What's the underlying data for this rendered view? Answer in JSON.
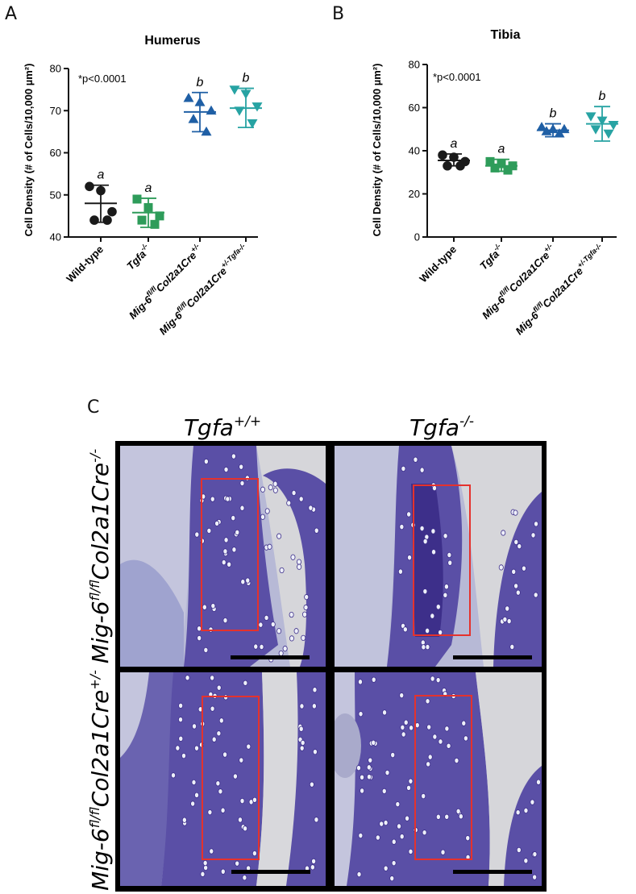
{
  "panels": {
    "a": "A",
    "b": "B",
    "c": "C"
  },
  "chart_data": [
    {
      "type": "scatter",
      "title": "Humerus",
      "ylabel": "Cell Density (# of Cells/10,000 µm²)",
      "ylim": [
        40,
        80
      ],
      "yticks": [
        40,
        50,
        60,
        70,
        80
      ],
      "annotation": "*p<0.0001",
      "categories": [
        {
          "base": "Wild-type",
          "sup": "",
          "base2": "",
          "sup2": ""
        },
        {
          "base": "Tgfa",
          "sup": "-/-",
          "base2": "",
          "sup2": ""
        },
        {
          "base": "Mig-6",
          "sup": "fl/fl",
          "base2": "Col2a1Cre",
          "sup2": "+/-"
        },
        {
          "base": "Mig-6",
          "sup": "fl/fl",
          "base2": "Col2a1Cre",
          "sup2": "+/-Tgfa-/-"
        }
      ],
      "series": [
        {
          "marker": "circle",
          "color": "#1a1a1a",
          "points": [
            52,
            51,
            46,
            44,
            44
          ],
          "mean": 48,
          "sd": [
            43.5,
            52.3
          ],
          "letter": "a"
        },
        {
          "marker": "square",
          "color": "#2e9c5a",
          "points": [
            49,
            47,
            45,
            44,
            43
          ],
          "mean": 45.8,
          "sd": [
            42.3,
            49.2
          ],
          "letter": "a"
        },
        {
          "marker": "triangle-up",
          "color": "#1f5fa5",
          "points": [
            73,
            72,
            70,
            68,
            65
          ],
          "mean": 69.7,
          "sd": [
            65,
            74.3
          ],
          "letter": "b"
        },
        {
          "marker": "triangle-down",
          "color": "#27a3a3",
          "points": [
            75,
            74,
            71,
            70,
            67
          ],
          "mean": 70.6,
          "sd": [
            66,
            75.3
          ],
          "letter": "b"
        }
      ]
    },
    {
      "type": "scatter",
      "title": "Tibia",
      "ylabel": "Cell Density (# of Cells/10,000 µm²)",
      "ylim": [
        0,
        80
      ],
      "yticks": [
        0,
        20,
        40,
        60,
        80
      ],
      "annotation": "*p<0.0001",
      "categories": [
        {
          "base": "Wild-type",
          "sup": "",
          "base2": "",
          "sup2": ""
        },
        {
          "base": "Tgfa",
          "sup": "-/-",
          "base2": "",
          "sup2": ""
        },
        {
          "base": "Mig-6",
          "sup": "fl/fl",
          "base2": "Col2a1Cre",
          "sup2": "+/-"
        },
        {
          "base": "Mig-6",
          "sup": "fl/fl",
          "base2": "Col2a1Cre",
          "sup2": "+/-Tgfa-/-"
        }
      ],
      "series": [
        {
          "marker": "circle",
          "color": "#1a1a1a",
          "points": [
            38,
            37,
            35,
            33,
            33
          ],
          "mean": 35.5,
          "sd": [
            33,
            38.5
          ],
          "letter": "a"
        },
        {
          "marker": "square",
          "color": "#2e9c5a",
          "points": [
            35,
            34,
            33,
            32,
            31
          ],
          "mean": 33,
          "sd": [
            30.5,
            36
          ],
          "letter": "a"
        },
        {
          "marker": "triangle-up",
          "color": "#1f5fa5",
          "points": [
            51,
            50,
            50,
            49,
            48
          ],
          "mean": 49.5,
          "sd": [
            46.5,
            52.5
          ],
          "letter": "b"
        },
        {
          "marker": "triangle-down",
          "color": "#27a3a3",
          "points": [
            56,
            54,
            52,
            50,
            48
          ],
          "mean": 52.5,
          "sd": [
            44.5,
            60.5
          ],
          "letter": "b"
        }
      ]
    }
  ],
  "micrographs": {
    "col_labels": [
      {
        "base": "Tgfa",
        "sup": "+/+"
      },
      {
        "base": "Tgfa",
        "sup": "-/-"
      }
    ],
    "row_labels": [
      {
        "base": "Mig-6",
        "sup": "fl/fl",
        "base2": "Col2a1Cre",
        "sup2": "-/-"
      },
      {
        "base": "Mig-6",
        "sup": "fl/fl",
        "base2": "Col2a1Cre",
        "sup2": "+/-"
      }
    ],
    "colors": {
      "tissue": "#5a4fa6",
      "dark": "#3d2f8a",
      "pale": "#b9bcd8",
      "background": "#cfcfd4",
      "box": "#e5322d",
      "scalebar": "#000000"
    }
  }
}
